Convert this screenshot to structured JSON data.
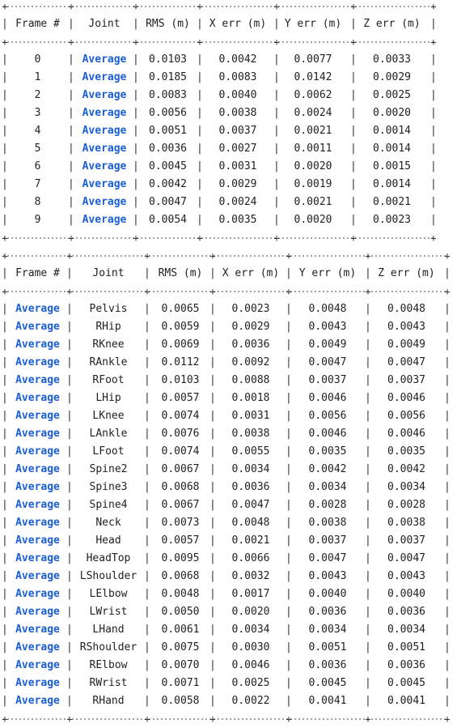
{
  "table1": {
    "headers": [
      "Frame #",
      "Joint",
      "RMS (m)",
      "X err (m)",
      "Y err (m)",
      "Z err (m)"
    ],
    "rows": [
      [
        "0",
        "Average",
        "0.0103",
        "0.0042",
        "0.0077",
        "0.0033"
      ],
      [
        "1",
        "Average",
        "0.0185",
        "0.0083",
        "0.0142",
        "0.0029"
      ],
      [
        "2",
        "Average",
        "0.0083",
        "0.0040",
        "0.0062",
        "0.0025"
      ],
      [
        "3",
        "Average",
        "0.0056",
        "0.0038",
        "0.0024",
        "0.0020"
      ],
      [
        "4",
        "Average",
        "0.0051",
        "0.0037",
        "0.0021",
        "0.0014"
      ],
      [
        "5",
        "Average",
        "0.0036",
        "0.0027",
        "0.0011",
        "0.0014"
      ],
      [
        "6",
        "Average",
        "0.0045",
        "0.0031",
        "0.0020",
        "0.0015"
      ],
      [
        "7",
        "Average",
        "0.0042",
        "0.0029",
        "0.0019",
        "0.0014"
      ],
      [
        "8",
        "Average",
        "0.0047",
        "0.0024",
        "0.0021",
        "0.0021"
      ],
      [
        "9",
        "Average",
        "0.0054",
        "0.0035",
        "0.0020",
        "0.0023"
      ]
    ]
  },
  "table2": {
    "headers": [
      "Frame #",
      "Joint",
      "RMS (m)",
      "X err (m)",
      "Y err (m)",
      "Z err (m)"
    ],
    "rows": [
      [
        "Average",
        "Pelvis",
        "0.0065",
        "0.0023",
        "0.0048",
        "0.0048"
      ],
      [
        "Average",
        "RHip",
        "0.0059",
        "0.0029",
        "0.0043",
        "0.0043"
      ],
      [
        "Average",
        "RKnee",
        "0.0069",
        "0.0036",
        "0.0049",
        "0.0049"
      ],
      [
        "Average",
        "RAnkle",
        "0.0112",
        "0.0092",
        "0.0047",
        "0.0047"
      ],
      [
        "Average",
        "RFoot",
        "0.0103",
        "0.0088",
        "0.0037",
        "0.0037"
      ],
      [
        "Average",
        "LHip",
        "0.0057",
        "0.0018",
        "0.0046",
        "0.0046"
      ],
      [
        "Average",
        "LKnee",
        "0.0074",
        "0.0031",
        "0.0056",
        "0.0056"
      ],
      [
        "Average",
        "LAnkle",
        "0.0076",
        "0.0038",
        "0.0046",
        "0.0046"
      ],
      [
        "Average",
        "LFoot",
        "0.0074",
        "0.0055",
        "0.0035",
        "0.0035"
      ],
      [
        "Average",
        "Spine2",
        "0.0067",
        "0.0034",
        "0.0042",
        "0.0042"
      ],
      [
        "Average",
        "Spine3",
        "0.0068",
        "0.0036",
        "0.0034",
        "0.0034"
      ],
      [
        "Average",
        "Spine4",
        "0.0067",
        "0.0047",
        "0.0028",
        "0.0028"
      ],
      [
        "Average",
        "Neck",
        "0.0073",
        "0.0048",
        "0.0038",
        "0.0038"
      ],
      [
        "Average",
        "Head",
        "0.0057",
        "0.0021",
        "0.0037",
        "0.0037"
      ],
      [
        "Average",
        "HeadTop",
        "0.0095",
        "0.0066",
        "0.0047",
        "0.0047"
      ],
      [
        "Average",
        "LShoulder",
        "0.0068",
        "0.0032",
        "0.0043",
        "0.0043"
      ],
      [
        "Average",
        "LElbow",
        "0.0048",
        "0.0017",
        "0.0040",
        "0.0040"
      ],
      [
        "Average",
        "LWrist",
        "0.0050",
        "0.0020",
        "0.0036",
        "0.0036"
      ],
      [
        "Average",
        "LHand",
        "0.0061",
        "0.0034",
        "0.0034",
        "0.0034"
      ],
      [
        "Average",
        "RShoulder",
        "0.0075",
        "0.0030",
        "0.0051",
        "0.0051"
      ],
      [
        "Average",
        "RElbow",
        "0.0070",
        "0.0046",
        "0.0036",
        "0.0036"
      ],
      [
        "Average",
        "RWrist",
        "0.0071",
        "0.0025",
        "0.0045",
        "0.0045"
      ],
      [
        "Average",
        "RHand",
        "0.0058",
        "0.0022",
        "0.0041",
        "0.0041"
      ]
    ]
  },
  "colors": {
    "link": "#1a5fd6",
    "text": "#1f1f1f"
  }
}
